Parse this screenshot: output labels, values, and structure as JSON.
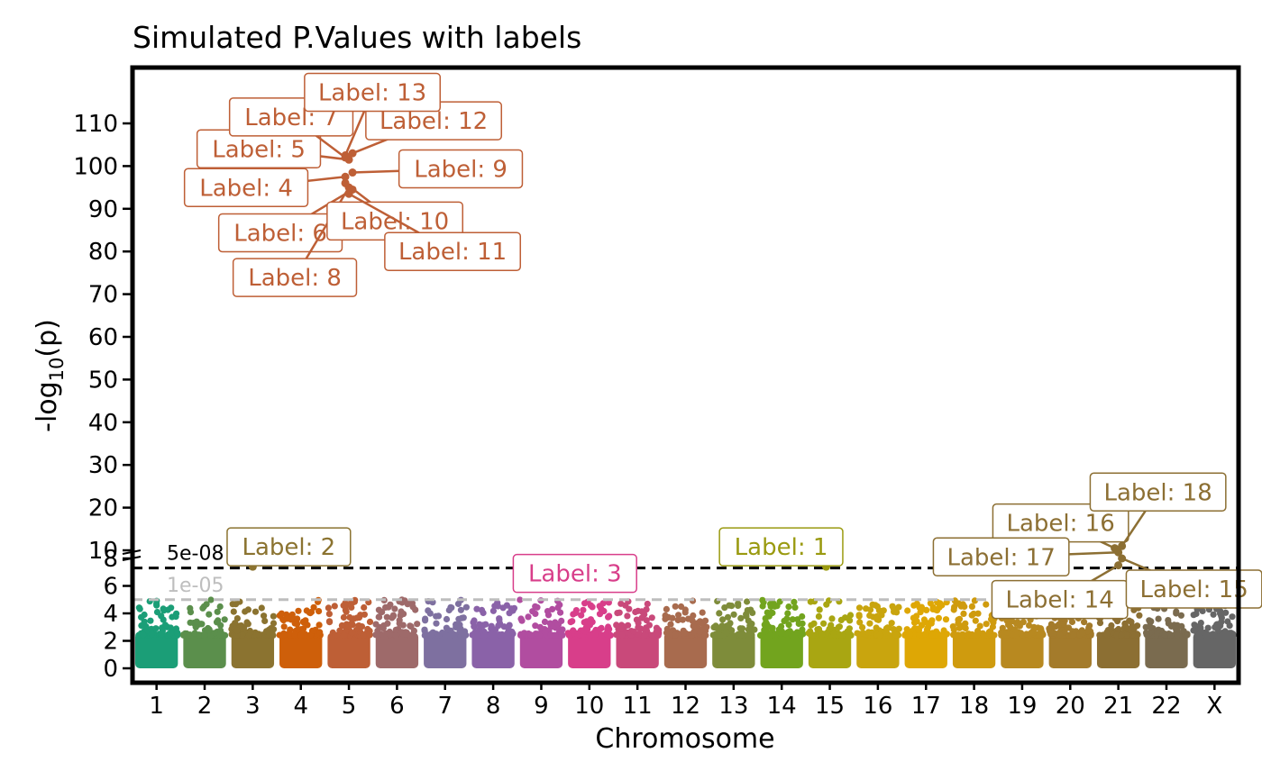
{
  "chart_data": {
    "type": "scatter",
    "title": "Simulated P.Values with labels",
    "xlabel": "Chromosome",
    "ylabel_base": "-log",
    "ylabel_sub": "10",
    "ylabel_tail": "(p)",
    "categories": [
      "1",
      "2",
      "3",
      "4",
      "5",
      "6",
      "7",
      "8",
      "9",
      "10",
      "11",
      "12",
      "13",
      "14",
      "15",
      "16",
      "17",
      "18",
      "19",
      "20",
      "21",
      "22",
      "X"
    ],
    "category_colors": [
      "#1B9E77",
      "#5B8F4C",
      "#8B7330",
      "#CE5F0A",
      "#BE5F36",
      "#9E6A6A",
      "#7E70A0",
      "#8A62A8",
      "#B14DA0",
      "#D83E8A",
      "#C9497A",
      "#A86B4E",
      "#7E8C3A",
      "#72A41E",
      "#A9A612",
      "#C9A50E",
      "#DEA705",
      "#CF9B0E",
      "#B88920",
      "#A47B2B",
      "#8C6F33",
      "#7A6B4F",
      "#666666"
    ],
    "y_ticks_low": [
      0,
      2,
      4,
      6,
      8
    ],
    "y_ticks_high": [
      10,
      20,
      30,
      40,
      50,
      60,
      70,
      80,
      90,
      100,
      110
    ],
    "y_break_at": 8,
    "ylim": [
      0,
      120
    ],
    "grid": false,
    "legend": "none",
    "thresholds": [
      {
        "label": "5e-08",
        "value": 7.3,
        "color": "#000000"
      },
      {
        "label": "1e-05",
        "value": 5.0,
        "color": "#BEBEBE"
      }
    ],
    "labeled_points": [
      {
        "label": "Label: 1",
        "chromosome": "15",
        "y": 7.4,
        "color": "#9A9A10"
      },
      {
        "label": "Label: 2",
        "chromosome": "3",
        "y": 7.4,
        "color": "#8B7330"
      },
      {
        "label": "Label: 3",
        "chromosome": "10",
        "y": 7.3,
        "color": "#D83E8A"
      },
      {
        "label": "Label: 4",
        "chromosome": "5",
        "y": 97.5,
        "color": "#BE5F36"
      },
      {
        "label": "Label: 5",
        "chromosome": "5",
        "y": 101.5,
        "color": "#BE5F36"
      },
      {
        "label": "Label: 6",
        "chromosome": "5",
        "y": 94.5,
        "color": "#BE5F36"
      },
      {
        "label": "Label: 7",
        "chromosome": "5",
        "y": 102.0,
        "color": "#BE5F36"
      },
      {
        "label": "Label: 8",
        "chromosome": "5",
        "y": 95.0,
        "color": "#BE5F36"
      },
      {
        "label": "Label: 9",
        "chromosome": "5",
        "y": 98.5,
        "color": "#BE5F36"
      },
      {
        "label": "Label: 10",
        "chromosome": "5",
        "y": 96.0,
        "color": "#BE5F36"
      },
      {
        "label": "Label: 11",
        "chromosome": "5",
        "y": 93.5,
        "color": "#BE5F36"
      },
      {
        "label": "Label: 12",
        "chromosome": "5",
        "y": 103.0,
        "color": "#BE5F36"
      },
      {
        "label": "Label: 13",
        "chromosome": "5",
        "y": 102.5,
        "color": "#BE5F36"
      },
      {
        "label": "Label: 14",
        "chromosome": "21",
        "y": 7.5,
        "color": "#8C6F33"
      },
      {
        "label": "Label: 15",
        "chromosome": "21",
        "y": 8.0,
        "color": "#8C6F33"
      },
      {
        "label": "Label: 16",
        "chromosome": "21",
        "y": 10.5,
        "color": "#8C6F33"
      },
      {
        "label": "Label: 17",
        "chromosome": "21",
        "y": 9.5,
        "color": "#8C6F33"
      },
      {
        "label": "Label: 18",
        "chromosome": "21",
        "y": 11.0,
        "color": "#8C6F33"
      }
    ]
  }
}
